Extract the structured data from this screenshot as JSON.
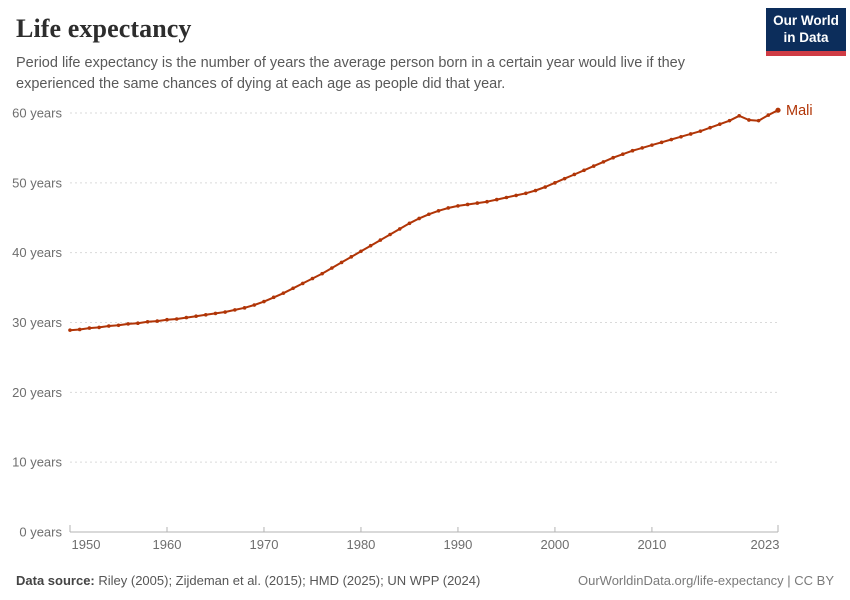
{
  "header": {
    "title": "Life expectancy",
    "subtitle": "Period life expectancy is the number of years the average person born in a certain year would live if they experienced the same chances of dying at each age as people did that year.",
    "logo": {
      "line1": "Our World",
      "line2": "in Data"
    }
  },
  "chart_data": {
    "type": "line",
    "title": "Life expectancy",
    "xlabel": "",
    "ylabel": "",
    "grid": "dashed-horizontal",
    "legend_position": "end-of-line",
    "xlim": [
      1950,
      2023
    ],
    "ylim": [
      0,
      60
    ],
    "x_ticks": [
      1950,
      1960,
      1970,
      1980,
      1990,
      2000,
      2010,
      2023
    ],
    "y_ticks": [
      0,
      10,
      20,
      30,
      40,
      50,
      60
    ],
    "y_tick_suffix": " years",
    "series": [
      {
        "name": "Mali",
        "color": "#B13507",
        "x": [
          1950,
          1951,
          1952,
          1953,
          1954,
          1955,
          1956,
          1957,
          1958,
          1959,
          1960,
          1961,
          1962,
          1963,
          1964,
          1965,
          1966,
          1967,
          1968,
          1969,
          1970,
          1971,
          1972,
          1973,
          1974,
          1975,
          1976,
          1977,
          1978,
          1979,
          1980,
          1981,
          1982,
          1983,
          1984,
          1985,
          1986,
          1987,
          1988,
          1989,
          1990,
          1991,
          1992,
          1993,
          1994,
          1995,
          1996,
          1997,
          1998,
          1999,
          2000,
          2001,
          2002,
          2003,
          2004,
          2005,
          2006,
          2007,
          2008,
          2009,
          2010,
          2011,
          2012,
          2013,
          2014,
          2015,
          2016,
          2017,
          2018,
          2019,
          2020,
          2021,
          2022,
          2023
        ],
        "values": [
          28.9,
          29.0,
          29.2,
          29.3,
          29.5,
          29.6,
          29.8,
          29.9,
          30.1,
          30.2,
          30.4,
          30.5,
          30.7,
          30.9,
          31.1,
          31.3,
          31.5,
          31.8,
          32.1,
          32.5,
          33.0,
          33.6,
          34.2,
          34.9,
          35.6,
          36.3,
          37.0,
          37.8,
          38.6,
          39.4,
          40.2,
          41.0,
          41.8,
          42.6,
          43.4,
          44.2,
          44.9,
          45.5,
          46.0,
          46.4,
          46.7,
          46.9,
          47.1,
          47.3,
          47.6,
          47.9,
          48.2,
          48.5,
          48.9,
          49.4,
          50.0,
          50.6,
          51.2,
          51.8,
          52.4,
          53.0,
          53.6,
          54.1,
          54.6,
          55.0,
          55.4,
          55.8,
          56.2,
          56.6,
          57.0,
          57.4,
          57.9,
          58.4,
          58.9,
          59.6,
          59.0,
          58.9,
          59.7,
          60.4
        ]
      }
    ]
  },
  "colors": {
    "line": "#B13507",
    "gridline": "#dadada",
    "axis": "#b3b3b3",
    "tick_label": "#6e6e6e",
    "logo_bg": "#0c2d5b",
    "logo_bar": "#cf3b44"
  },
  "footer": {
    "source_label": "Data source:",
    "source_text": " Riley (2005); Zijdeman et al. (2015); HMD (2025); UN WPP (2024)",
    "link_text": "OurWorldinData.org/life-expectancy | CC BY"
  }
}
